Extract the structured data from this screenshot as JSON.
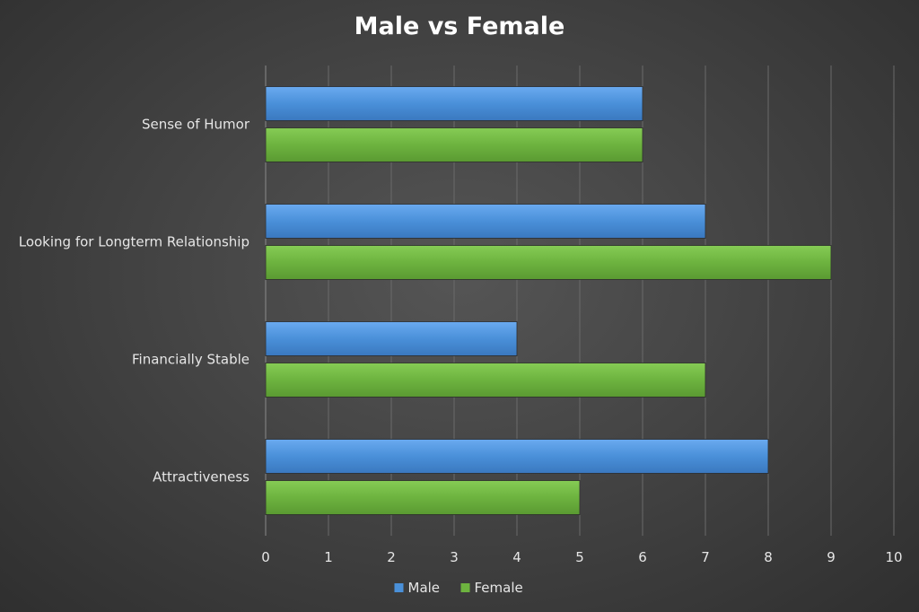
{
  "chart_data": {
    "type": "bar",
    "orientation": "horizontal",
    "title": "Male vs Female",
    "xlabel": "",
    "ylabel": "",
    "categories": [
      "Sense of Humor",
      "Looking for Longterm Relationship",
      "Financially Stable",
      "Attractiveness"
    ],
    "series": [
      {
        "name": "Male",
        "values": [
          6,
          7,
          4,
          8
        ],
        "color": "#4a90d9"
      },
      {
        "name": "Female",
        "values": [
          6,
          9,
          7,
          5
        ],
        "color": "#6db33f"
      }
    ],
    "xlim": [
      0,
      10
    ],
    "x_ticks": [
      0,
      1,
      2,
      3,
      4,
      5,
      6,
      7,
      8,
      9,
      10
    ],
    "grid": true,
    "legend_position": "bottom"
  }
}
